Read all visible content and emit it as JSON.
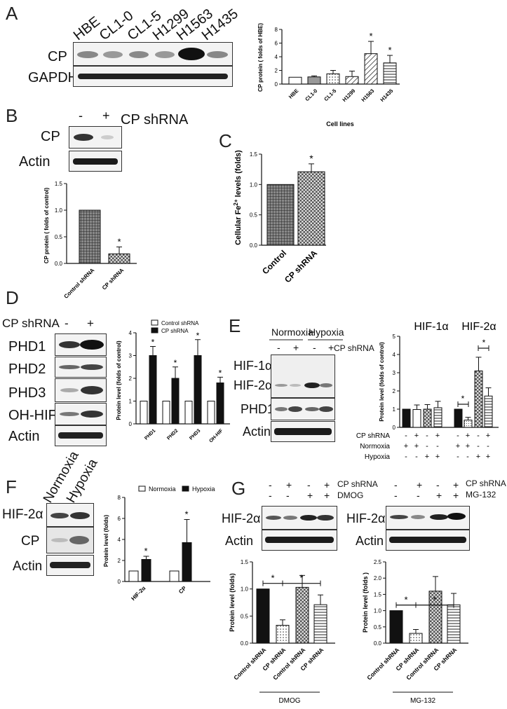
{
  "panels": {
    "A": {
      "letter": "A",
      "lanes": [
        "HBE",
        "CL1-0",
        "CL1-5",
        "H1299",
        "H1563",
        "H1435"
      ],
      "blot_labels": [
        "CP",
        "GAPDH"
      ],
      "chart_data": {
        "type": "bar",
        "categories": [
          "HBE",
          "CL1-0",
          "CL1-5",
          "H1299",
          "H1563",
          "H1435"
        ],
        "values": [
          1.0,
          1.05,
          1.5,
          1.1,
          4.45,
          3.1
        ],
        "errors": [
          0,
          0.15,
          0.5,
          0.8,
          1.8,
          1.1
        ],
        "significance": [
          "",
          "",
          "",
          "",
          "*",
          "*"
        ],
        "ylabel": "CP protein ( folds of HBE)",
        "xlabel": "Cell lines",
        "ylim": [
          0,
          8
        ],
        "yticks": [
          "0",
          "2",
          "4",
          "6",
          "8"
        ]
      }
    },
    "B": {
      "letter": "B",
      "lane_marks": [
        "-",
        "+"
      ],
      "treatment": "CP shRNA",
      "blot_labels": [
        "CP",
        "Actin"
      ],
      "chart_data": {
        "type": "bar",
        "categories": [
          "Control shRNA",
          "CP shRNA"
        ],
        "values": [
          1.0,
          0.18
        ],
        "errors": [
          0,
          0.13
        ],
        "significance": [
          "",
          "*"
        ],
        "ylabel": "CP protein ( folds of control)",
        "ylim": [
          0,
          1.5
        ],
        "yticks": [
          "0.0",
          "0.5",
          "1.0",
          "1.5"
        ]
      }
    },
    "C": {
      "letter": "C",
      "chart_data": {
        "type": "bar",
        "categories": [
          "Control",
          "CP shRNA"
        ],
        "values": [
          1.0,
          1.21
        ],
        "errors": [
          0,
          0.13
        ],
        "significance": [
          "",
          "*"
        ],
        "ylabel": "Cellular Fe2+ levels (folds)",
        "ylabel_base": "Cellular Fe",
        "ylabel_sup": "2+",
        "ylabel_rest": " levels (folds)",
        "ylim": [
          0,
          1.5
        ],
        "yticks": [
          "0.0",
          "0.5",
          "1.0",
          "1.5"
        ]
      }
    },
    "D": {
      "letter": "D",
      "treatment": "CP shRNA",
      "lane_marks": [
        "-",
        "+"
      ],
      "blot_labels": [
        "PHD1",
        "PHD2",
        "PHD3",
        "OH-HIF",
        "Actin"
      ],
      "chart_data": {
        "type": "bar",
        "categories": [
          "PHD1",
          "PHD2",
          "PHD3",
          "OH-HIF"
        ],
        "series": [
          {
            "name": "Control shRNA",
            "values": [
              1,
              1,
              1,
              1
            ],
            "errors": [
              0,
              0,
              0,
              0
            ]
          },
          {
            "name": "CP shRNA",
            "values": [
              3.0,
              2.0,
              3.0,
              1.8
            ],
            "errors": [
              0.4,
              0.5,
              0.7,
              0.25
            ]
          }
        ],
        "significance": [
          "*",
          "*",
          "*",
          "*"
        ],
        "ylabel": "Protein level (folds of control)",
        "ylim": [
          0,
          4
        ],
        "yticks": [
          "0",
          "1",
          "2",
          "3",
          "4"
        ]
      }
    },
    "E": {
      "letter": "E",
      "conditions": [
        "Normoxia",
        "Hypoxia"
      ],
      "treatment": "CP shRNA",
      "lane_marks": [
        "-",
        "+",
        "-",
        "+"
      ],
      "blot_labels": [
        "HIF-1α",
        "HIF-2α",
        "PHD1",
        "Actin"
      ],
      "chart_data": {
        "type": "bar",
        "groups": [
          "HIF-1α",
          "HIF-2α"
        ],
        "values": [
          1.0,
          0.98,
          1.0,
          1.08,
          1.0,
          0.4,
          3.1,
          1.72
        ],
        "errors": [
          0,
          0.25,
          0.25,
          0.35,
          0,
          0.15,
          0.75,
          0.45
        ],
        "ylabel": "Protein level (folds of control)",
        "ylim": [
          0,
          5
        ],
        "yticks": [
          "0",
          "1",
          "2",
          "3",
          "4",
          "5"
        ],
        "table_rows": [
          {
            "label": "CP shRNA",
            "marks": [
              "-",
              "+",
              "-",
              "+",
              "-",
              "+",
              "-",
              "+"
            ]
          },
          {
            "label": "Normoxia",
            "marks": [
              "+",
              "+",
              "-",
              "-",
              "+",
              "+",
              "-",
              "-"
            ]
          },
          {
            "label": "Hypoxia",
            "marks": [
              "-",
              "-",
              "+",
              "+",
              "-",
              "-",
              "+",
              "+"
            ]
          }
        ],
        "significance": [
          "*",
          "*"
        ]
      }
    },
    "F": {
      "letter": "F",
      "lanes": [
        "Normoxia",
        "Hypoxia"
      ],
      "blot_labels": [
        "HIF-2α",
        "CP",
        "Actin"
      ],
      "chart_data": {
        "type": "bar",
        "categories": [
          "HIF-2α",
          "CP"
        ],
        "series": [
          {
            "name": "Normoxia",
            "values": [
              1.0,
              1.0
            ],
            "errors": [
              0,
              0
            ]
          },
          {
            "name": "Hypoxia",
            "values": [
              2.1,
              3.7
            ],
            "errors": [
              0.3,
              2.2
            ]
          }
        ],
        "significance": [
          "*",
          "*"
        ],
        "ylabel": "Protein level (folds)",
        "ylim": [
          0,
          8
        ],
        "yticks": [
          "0",
          "2",
          "4",
          "6",
          "8"
        ]
      }
    },
    "G": {
      "letter": "G",
      "left": {
        "rows": [
          {
            "label": "CP shRNA",
            "marks": [
              "-",
              "+",
              "-",
              "+"
            ]
          },
          {
            "label": "DMOG",
            "marks": [
              "-",
              "-",
              "+",
              "+"
            ]
          }
        ],
        "blot_labels": [
          "HIF-2α",
          "Actin"
        ],
        "chart_data": {
          "type": "bar",
          "categories": [
            "Control shRNA",
            "CP shRNA",
            "Control shRNA",
            "CP shRNA"
          ],
          "values": [
            1.0,
            0.33,
            1.03,
            0.71
          ],
          "errors": [
            0,
            0.1,
            0.22,
            0.18
          ],
          "significance": [
            "*",
            "*"
          ],
          "ylabel": "Protein level (folds)",
          "ylim": [
            0,
            1.5
          ],
          "yticks": [
            "0.0",
            "0.5",
            "1.0",
            "1.5"
          ],
          "group_label": "DMOG"
        }
      },
      "right": {
        "rows": [
          {
            "label": "CP shRNA",
            "marks": [
              "-",
              "+",
              "-",
              "+"
            ]
          },
          {
            "label": "MG-132",
            "marks": [
              "-",
              "-",
              "+",
              "+"
            ]
          }
        ],
        "blot_labels": [
          "HIF-2α",
          "Actin"
        ],
        "chart_data": {
          "type": "bar",
          "categories": [
            "Control shRNA",
            "CP shRNA",
            "Control shRNA",
            "CP shRNA"
          ],
          "values": [
            1.0,
            0.3,
            1.6,
            1.18
          ],
          "errors": [
            0,
            0.12,
            0.45,
            0.35
          ],
          "significance": [
            "*",
            "*"
          ],
          "ylabel": "Protein level (folds )",
          "ylim": [
            0,
            2.5
          ],
          "yticks": [
            "0.0",
            "0.5",
            "1.0",
            "1.5",
            "2.0",
            "2.5"
          ],
          "group_label": "MG-132"
        }
      }
    }
  }
}
